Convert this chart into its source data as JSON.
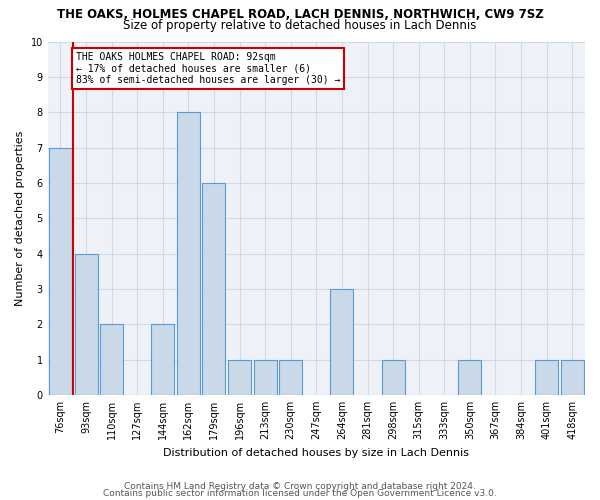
{
  "title1": "THE OAKS, HOLMES CHAPEL ROAD, LACH DENNIS, NORTHWICH, CW9 7SZ",
  "title2": "Size of property relative to detached houses in Lach Dennis",
  "xlabel": "Distribution of detached houses by size in Lach Dennis",
  "ylabel": "Number of detached properties",
  "footer1": "Contains HM Land Registry data © Crown copyright and database right 2024.",
  "footer2": "Contains public sector information licensed under the Open Government Licence v3.0.",
  "categories": [
    "76sqm",
    "93sqm",
    "110sqm",
    "127sqm",
    "144sqm",
    "162sqm",
    "179sqm",
    "196sqm",
    "213sqm",
    "230sqm",
    "247sqm",
    "264sqm",
    "281sqm",
    "298sqm",
    "315sqm",
    "333sqm",
    "350sqm",
    "367sqm",
    "384sqm",
    "401sqm",
    "418sqm"
  ],
  "values": [
    7,
    4,
    2,
    0,
    2,
    8,
    6,
    1,
    1,
    1,
    0,
    3,
    0,
    1,
    0,
    0,
    1,
    0,
    0,
    1,
    1
  ],
  "bar_color": "#c9d9e8",
  "bar_edge_color": "#5b9bd5",
  "bar_linewidth": 0.8,
  "redline_x": 0.5,
  "annotation_text": "THE OAKS HOLMES CHAPEL ROAD: 92sqm\n← 17% of detached houses are smaller (6)\n83% of semi-detached houses are larger (30) →",
  "annotation_box_color": "#ffffff",
  "annotation_box_edge_color": "#cc0000",
  "ylim": [
    0,
    10
  ],
  "yticks": [
    0,
    1,
    2,
    3,
    4,
    5,
    6,
    7,
    8,
    9,
    10
  ],
  "grid_color": "#d0d8e8",
  "bg_color": "#eef2f8",
  "title1_fontsize": 8.5,
  "title2_fontsize": 8.5,
  "xlabel_fontsize": 8,
  "ylabel_fontsize": 8,
  "tick_fontsize": 7,
  "annotation_fontsize": 7,
  "footer_fontsize": 6.5
}
